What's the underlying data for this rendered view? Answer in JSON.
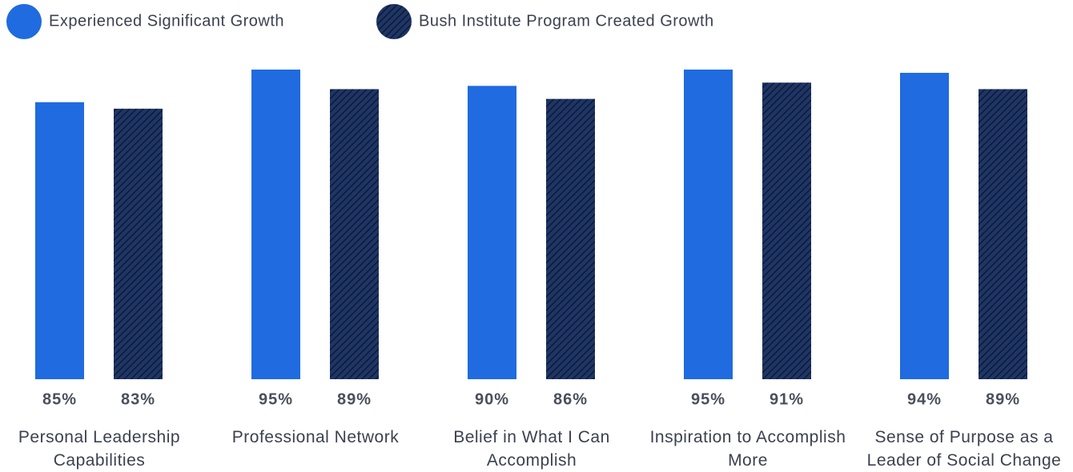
{
  "chart_data": {
    "type": "bar",
    "categories": [
      "Personal Leadership Capabilities",
      "Professional Network",
      "Belief in What I Can Accomplish",
      "Inspiration to Accomplish More",
      "Sense of Purpose as a Leader of Social Change"
    ],
    "series": [
      {
        "name": "Experienced Significant Growth",
        "color": "#1f6bdf",
        "values": [
          85,
          95,
          90,
          95,
          94
        ],
        "value_labels": [
          "85%",
          "95%",
          "90%",
          "95%",
          "94%"
        ]
      },
      {
        "name": "Bush Institute Program Created Growth",
        "color": "#1e3566",
        "values": [
          83,
          89,
          86,
          91,
          89
        ],
        "value_labels": [
          "83%",
          "89%",
          "86%",
          "91%",
          "89%"
        ]
      }
    ],
    "ylim": [
      0,
      100
    ]
  }
}
